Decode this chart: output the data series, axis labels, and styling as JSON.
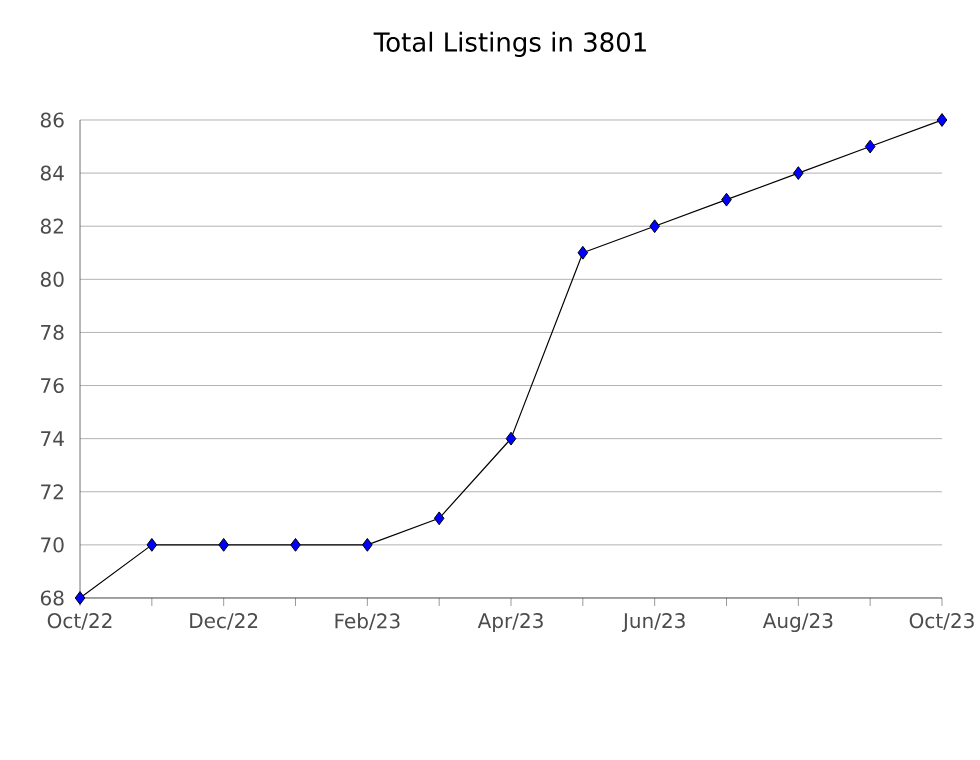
{
  "chart_data": {
    "type": "line",
    "title": "Total Listings in 3801",
    "categories": [
      "Oct/22",
      null,
      "Dec/22",
      null,
      "Feb/23",
      null,
      "Apr/23",
      null,
      "Jun/23",
      null,
      "Aug/23",
      null,
      "Oct/23"
    ],
    "series": [
      {
        "color": "#0000ff",
        "values": [
          68,
          70,
          70,
          70,
          70,
          71,
          74,
          81,
          82,
          83,
          84,
          85,
          86
        ]
      }
    ],
    "ylim": [
      68,
      86
    ],
    "yticks": [
      68,
      70,
      72,
      74,
      76,
      78,
      80,
      82,
      84,
      86
    ],
    "grid": "y",
    "marker": "diamond",
    "line_style": "solid"
  }
}
